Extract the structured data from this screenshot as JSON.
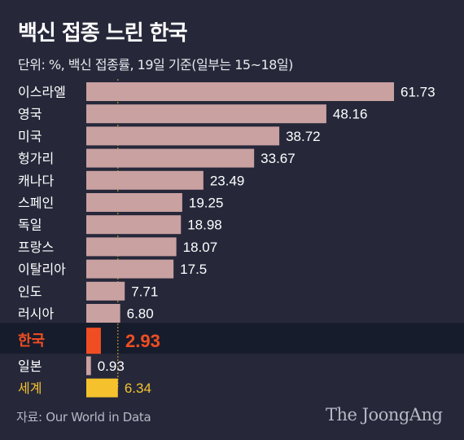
{
  "header": {
    "title": "백신 접종 느린 한국",
    "subtitle": "단위: %, 백신 접종률, 19일 기준(일부는 15~18일)"
  },
  "footer": {
    "source": "자료: Our World in Data",
    "logo": "The JoongAng"
  },
  "colors": {
    "background": "#26283a",
    "highlight_band": "#171c2c",
    "bar_default": "#c9a1a1",
    "bar_korea": "#f04e22",
    "bar_world": "#f5c22e",
    "label_korea": "#f04e22",
    "label_world": "#f5c22e",
    "guide_line": "#f5c22e"
  },
  "chart_data": {
    "type": "bar",
    "orientation": "horizontal",
    "categories": [
      "이스라엘",
      "영국",
      "미국",
      "헝가리",
      "캐나다",
      "스페인",
      "독일",
      "프랑스",
      "이탈리아",
      "인도",
      "러시아",
      "한국",
      "일본",
      "세계"
    ],
    "values": [
      61.73,
      48.16,
      38.72,
      33.67,
      23.49,
      19.25,
      18.98,
      18.07,
      17.5,
      7.71,
      6.8,
      2.93,
      0.93,
      6.34
    ],
    "value_labels": [
      "61.73",
      "48.16",
      "38.72",
      "33.67",
      "23.49",
      "19.25",
      "18.98",
      "18.07",
      "17.5",
      "7.71",
      "6.80",
      "2.93",
      "0.93",
      "6.34"
    ],
    "highlight": "한국",
    "world": "세계",
    "guide_value": 6.34,
    "xlim": [
      0,
      61.73
    ],
    "grid": false,
    "legend": "none"
  }
}
